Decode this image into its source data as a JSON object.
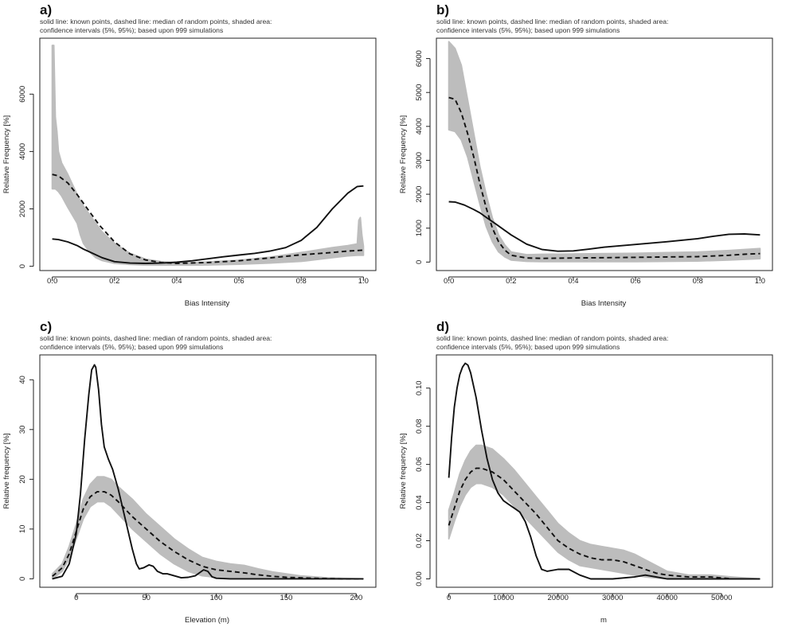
{
  "chart_data": [
    {
      "id": "a",
      "type": "line",
      "panel_label": "a)",
      "caption": [
        "solid line: known points, dashed line: median of random points, shaded area:",
        "confidence intervals (5%, 95%); based upon 999 simulations"
      ],
      "xlabel": "Bias Intensity",
      "ylabel": "Relative Frequency [%]",
      "xlim": [
        -0.04,
        1.04
      ],
      "ylim": [
        -150,
        7950
      ],
      "xticks": [
        0,
        0.2,
        0.4,
        0.6,
        0.8,
        1
      ],
      "xtick_labels": [
        "0.0",
        "0.2",
        "0.4",
        "0.6",
        "0.8",
        "1.0"
      ],
      "yticks": [
        0,
        2000,
        4000,
        6000
      ],
      "ytick_labels": [
        "0",
        "2000",
        "4000",
        "6000"
      ],
      "ytick_rotated": true,
      "series": [
        {
          "kind": "band",
          "x": [
            0,
            0.005,
            0.01,
            0.015,
            0.02,
            0.03,
            0.05,
            0.08,
            0.09,
            0.1,
            0.12,
            0.14,
            0.16,
            0.2,
            0.25,
            0.3,
            0.35,
            0.4,
            0.45,
            0.5,
            0.6,
            0.7,
            0.8,
            0.9,
            0.95,
            0.98,
            0.985,
            0.99,
            0.995,
            1
          ],
          "lower": [
            2700,
            2700,
            2700,
            2650,
            2600,
            2450,
            2050,
            1500,
            1100,
            800,
            500,
            300,
            200,
            100,
            60,
            40,
            40,
            40,
            40,
            45,
            70,
            110,
            170,
            300,
            360,
            380,
            380,
            380,
            380,
            380
          ],
          "upper": [
            7700,
            7700,
            5200,
            4700,
            4000,
            3600,
            3200,
            2500,
            2300,
            2100,
            1800,
            1500,
            1200,
            800,
            450,
            250,
            160,
            120,
            130,
            150,
            210,
            320,
            480,
            650,
            720,
            780,
            1600,
            1700,
            1100,
            700
          ]
        },
        {
          "kind": "median",
          "x": [
            0,
            0.02,
            0.05,
            0.08,
            0.1,
            0.12,
            0.15,
            0.2,
            0.25,
            0.3,
            0.35,
            0.4,
            0.5,
            0.6,
            0.7,
            0.8,
            0.9,
            0.95,
            1
          ],
          "y": [
            3200,
            3150,
            2900,
            2500,
            2200,
            1900,
            1450,
            850,
            430,
            220,
            130,
            100,
            130,
            190,
            290,
            400,
            480,
            530,
            560
          ]
        },
        {
          "kind": "known",
          "x": [
            0,
            0.02,
            0.05,
            0.08,
            0.1,
            0.13,
            0.16,
            0.2,
            0.25,
            0.3,
            0.35,
            0.4,
            0.45,
            0.5,
            0.55,
            0.6,
            0.65,
            0.7,
            0.75,
            0.8,
            0.85,
            0.9,
            0.95,
            0.98,
            1
          ],
          "y": [
            950,
            930,
            850,
            720,
            600,
            450,
            300,
            160,
            110,
            100,
            110,
            140,
            190,
            260,
            330,
            390,
            450,
            530,
            650,
            900,
            1350,
            2000,
            2550,
            2780,
            2800
          ]
        }
      ]
    },
    {
      "id": "b",
      "type": "line",
      "panel_label": "b)",
      "caption": [
        "solid line: known points, dashed line: median of random points, shaded area:",
        "confidence intervals (5%, 95%); based upon 999 simulations"
      ],
      "xlabel": "Bias Intensity",
      "ylabel": "Relative Frequency [%]",
      "xlim": [
        -0.04,
        1.04
      ],
      "ylim": [
        -250,
        6600
      ],
      "xticks": [
        0,
        0.2,
        0.4,
        0.6,
        0.8,
        1
      ],
      "xtick_labels": [
        "0.0",
        "0.2",
        "0.4",
        "0.6",
        "0.8",
        "1.0"
      ],
      "yticks": [
        0,
        1000,
        2000,
        3000,
        4000,
        5000,
        6000
      ],
      "ytick_labels": [
        "0",
        "1000",
        "2000",
        "3000",
        "4000",
        "5000",
        "6000"
      ],
      "ytick_rotated": true,
      "series": [
        {
          "kind": "band",
          "x": [
            0,
            0.02,
            0.04,
            0.06,
            0.08,
            0.1,
            0.12,
            0.14,
            0.16,
            0.18,
            0.2,
            0.25,
            0.3,
            0.4,
            0.5,
            0.6,
            0.7,
            0.8,
            0.9,
            1
          ],
          "lower": [
            3900,
            3850,
            3600,
            3100,
            2400,
            1700,
            1050,
            600,
            300,
            150,
            60,
            20,
            10,
            10,
            10,
            10,
            20,
            30,
            60,
            100
          ],
          "upper": [
            6500,
            6300,
            5800,
            4800,
            3800,
            2800,
            2000,
            1300,
            800,
            500,
            300,
            220,
            230,
            240,
            250,
            260,
            280,
            300,
            340,
            400
          ]
        },
        {
          "kind": "median",
          "x": [
            0,
            0.02,
            0.04,
            0.06,
            0.08,
            0.1,
            0.12,
            0.14,
            0.16,
            0.18,
            0.2,
            0.25,
            0.3,
            0.4,
            0.5,
            0.6,
            0.7,
            0.8,
            0.9,
            0.95,
            1
          ],
          "y": [
            4850,
            4800,
            4400,
            3800,
            3100,
            2300,
            1600,
            1000,
            600,
            350,
            200,
            120,
            110,
            120,
            130,
            140,
            150,
            160,
            200,
            230,
            250
          ]
        },
        {
          "kind": "known",
          "x": [
            0,
            0.02,
            0.05,
            0.08,
            0.1,
            0.12,
            0.15,
            0.2,
            0.25,
            0.3,
            0.35,
            0.4,
            0.45,
            0.5,
            0.6,
            0.7,
            0.8,
            0.85,
            0.9,
            0.95,
            1
          ],
          "y": [
            1780,
            1770,
            1680,
            1550,
            1450,
            1320,
            1130,
            800,
            530,
            370,
            320,
            330,
            380,
            440,
            520,
            600,
            690,
            760,
            820,
            830,
            800
          ]
        }
      ]
    },
    {
      "id": "c",
      "type": "line",
      "panel_label": "c)",
      "caption": [
        "solid line: known points, dashed line: median of random points, shaded area:",
        "confidence intervals (5%, 95%); based upon 999 simulations"
      ],
      "xlabel": "Elevation (m)",
      "ylabel": "Relative frequency [%]",
      "xlim": [
        -26,
        214
      ],
      "ylim": [
        -1.7,
        45
      ],
      "xticks": [
        0,
        50,
        100,
        150,
        200
      ],
      "xtick_labels": [
        "0",
        "50",
        "100",
        "150",
        "200"
      ],
      "yticks": [
        0,
        10,
        20,
        30,
        40
      ],
      "ytick_labels": [
        "0",
        "10",
        "20",
        "30",
        "40"
      ],
      "ytick_rotated": true,
      "series": [
        {
          "kind": "band",
          "x": [
            -17,
            -10,
            -5,
            0,
            5,
            10,
            15,
            20,
            25,
            30,
            40,
            50,
            60,
            70,
            80,
            90,
            100,
            110,
            120,
            130,
            140,
            150,
            160,
            170,
            180,
            190,
            205
          ],
          "lower": [
            0,
            1.5,
            4,
            8,
            12,
            14.5,
            15.5,
            15.5,
            14.5,
            13,
            10,
            7.5,
            5,
            3,
            1.5,
            0.6,
            0.3,
            0.1,
            0,
            0,
            0,
            0,
            0,
            0,
            0,
            0,
            0
          ],
          "upper": [
            1,
            3,
            6.5,
            11,
            16,
            19,
            20.5,
            20.5,
            20,
            18.5,
            16,
            13,
            10.5,
            8,
            6,
            4.3,
            3.5,
            3,
            2.7,
            2,
            1.4,
            1,
            0.6,
            0.4,
            0.2,
            0.1,
            0
          ]
        },
        {
          "kind": "median",
          "x": [
            -17,
            -10,
            -5,
            0,
            5,
            10,
            15,
            20,
            25,
            30,
            40,
            50,
            60,
            70,
            80,
            90,
            100,
            110,
            120,
            130,
            140,
            150,
            160,
            170,
            180,
            190,
            205
          ],
          "y": [
            0.5,
            2.2,
            5,
            9.5,
            14,
            16.5,
            17.5,
            17.5,
            16.8,
            15.5,
            12.5,
            10,
            7.5,
            5.5,
            3.8,
            2.5,
            1.8,
            1.5,
            1.2,
            0.8,
            0.5,
            0.3,
            0.2,
            0.1,
            0.05,
            0,
            0
          ]
        },
        {
          "kind": "known",
          "x": [
            -17,
            -10,
            -5,
            0,
            3,
            6,
            9,
            11,
            13,
            14,
            16,
            18,
            20,
            23,
            26,
            30,
            35,
            40,
            43,
            45,
            48,
            52,
            55,
            58,
            62,
            65,
            70,
            75,
            80,
            85,
            88,
            91,
            94,
            97,
            100,
            110,
            120,
            150,
            205
          ],
          "y": [
            0,
            0.5,
            3,
            9,
            17,
            28,
            37,
            42,
            43,
            42.5,
            38,
            31,
            26.5,
            24,
            22,
            18,
            12,
            6,
            3,
            2,
            2.2,
            2.8,
            2.5,
            1.5,
            1,
            1,
            0.6,
            0.2,
            0.3,
            0.6,
            1.2,
            1.8,
            1.5,
            0.4,
            0.1,
            0,
            0,
            0,
            0
          ]
        }
      ]
    },
    {
      "id": "d",
      "type": "line",
      "panel_label": "d)",
      "caption": [
        "solid line: known points, dashed line: median of random points, shaded area:",
        "confidence intervals (5%, 95%); based upon 999 simulations"
      ],
      "xlabel": "m",
      "ylabel": "Relative frequency [%]",
      "xlim": [
        -2280,
        59300
      ],
      "ylim": [
        -0.0044,
        0.1174
      ],
      "xticks": [
        0,
        10000,
        20000,
        30000,
        40000,
        50000
      ],
      "xtick_labels": [
        "0",
        "10000",
        "20000",
        "30000",
        "40000",
        "50000"
      ],
      "yticks": [
        0,
        0.02,
        0.04,
        0.06,
        0.08,
        0.1
      ],
      "ytick_labels": [
        "0.00",
        "0.02",
        "0.04",
        "0.06",
        "0.08",
        "0.10"
      ],
      "ytick_rotated": true,
      "series": [
        {
          "kind": "band",
          "x": [
            0,
            1000,
            2000,
            3000,
            4000,
            5000,
            6000,
            8000,
            10000,
            12000,
            14000,
            16000,
            18000,
            20000,
            22000,
            24000,
            26000,
            28000,
            30000,
            32000,
            34000,
            36000,
            38000,
            40000,
            44000,
            48000,
            52000,
            57000
          ],
          "lower": [
            0.021,
            0.03,
            0.038,
            0.044,
            0.048,
            0.05,
            0.05,
            0.048,
            0.044,
            0.038,
            0.032,
            0.026,
            0.02,
            0.014,
            0.01,
            0.007,
            0.006,
            0.005,
            0.004,
            0.003,
            0.002,
            0.001,
            0.0005,
            0,
            0,
            0,
            0,
            0
          ],
          "upper": [
            0.036,
            0.045,
            0.055,
            0.062,
            0.067,
            0.07,
            0.07,
            0.068,
            0.063,
            0.057,
            0.05,
            0.043,
            0.036,
            0.029,
            0.024,
            0.02,
            0.018,
            0.017,
            0.016,
            0.015,
            0.013,
            0.01,
            0.007,
            0.004,
            0.002,
            0.002,
            0.001,
            0
          ]
        },
        {
          "kind": "median",
          "x": [
            0,
            1000,
            2000,
            3000,
            4000,
            5000,
            6000,
            8000,
            10000,
            12000,
            14000,
            16000,
            18000,
            20000,
            22000,
            24000,
            26000,
            28000,
            30000,
            32000,
            34000,
            36000,
            38000,
            40000,
            44000,
            48000,
            52000,
            57000
          ],
          "y": [
            0.028,
            0.037,
            0.046,
            0.052,
            0.056,
            0.058,
            0.058,
            0.056,
            0.052,
            0.046,
            0.04,
            0.034,
            0.027,
            0.02,
            0.016,
            0.013,
            0.011,
            0.01,
            0.01,
            0.009,
            0.007,
            0.005,
            0.003,
            0.002,
            0.001,
            0.001,
            0,
            0
          ]
        },
        {
          "kind": "known",
          "x": [
            0,
            500,
            1000,
            1500,
            2000,
            2500,
            3000,
            3500,
            4000,
            5000,
            6000,
            7000,
            8000,
            9000,
            10000,
            11000,
            12000,
            13000,
            14000,
            15000,
            16000,
            17000,
            18000,
            20000,
            22000,
            24000,
            26000,
            30000,
            34000,
            36000,
            38000,
            40000,
            44000,
            50000,
            57000
          ],
          "y": [
            0.053,
            0.074,
            0.09,
            0.1,
            0.107,
            0.111,
            0.113,
            0.112,
            0.108,
            0.095,
            0.078,
            0.063,
            0.052,
            0.045,
            0.041,
            0.039,
            0.037,
            0.035,
            0.03,
            0.022,
            0.012,
            0.005,
            0.004,
            0.005,
            0.005,
            0.002,
            0,
            0,
            0.001,
            0.002,
            0.001,
            0,
            0,
            0,
            0
          ]
        }
      ]
    }
  ]
}
